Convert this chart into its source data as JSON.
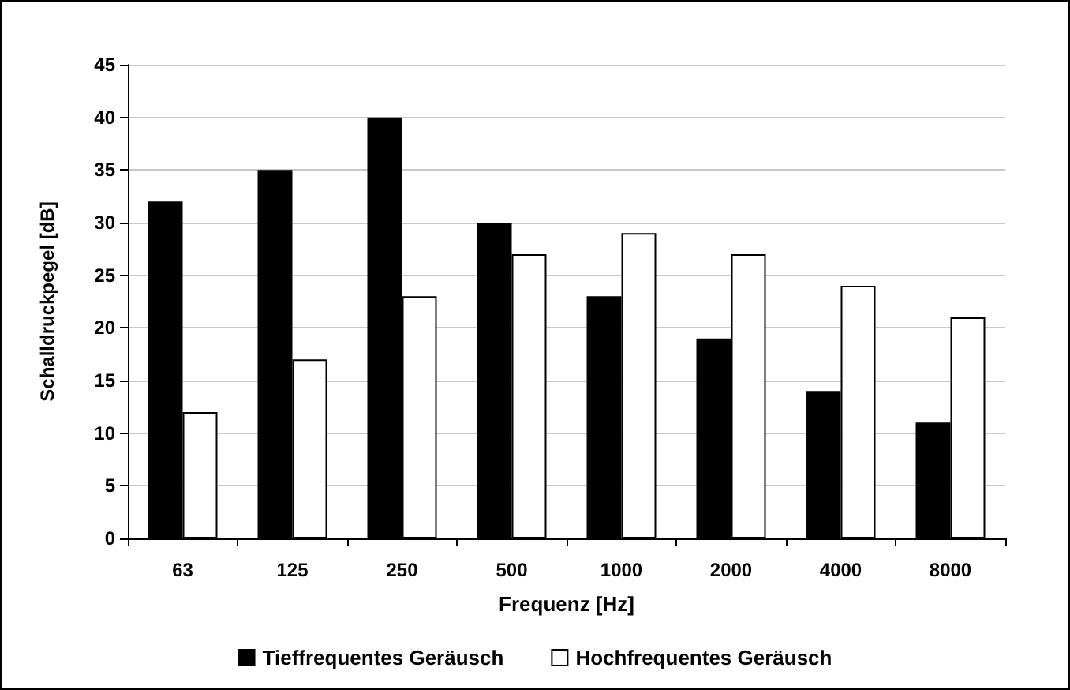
{
  "chart_data": {
    "type": "bar",
    "xlabel": "Frequenz [Hz]",
    "ylabel": "Schalldruckpegel [dB]",
    "categories": [
      "63",
      "125",
      "250",
      "500",
      "1000",
      "2000",
      "4000",
      "8000"
    ],
    "series": [
      {
        "name": "Tieffrequentes Geräusch",
        "color": "#000000",
        "values": [
          32,
          35,
          40,
          30,
          23,
          19,
          14,
          11
        ]
      },
      {
        "name": "Hochfrequentes Geräusch",
        "color": "#ffffff",
        "values": [
          12,
          17,
          23,
          27,
          29,
          27,
          24,
          21
        ]
      }
    ],
    "ylim": [
      0,
      45
    ],
    "yticks": [
      0,
      5,
      10,
      15,
      20,
      25,
      30,
      35,
      40,
      45
    ],
    "grid": "y",
    "legend": "bottom"
  }
}
